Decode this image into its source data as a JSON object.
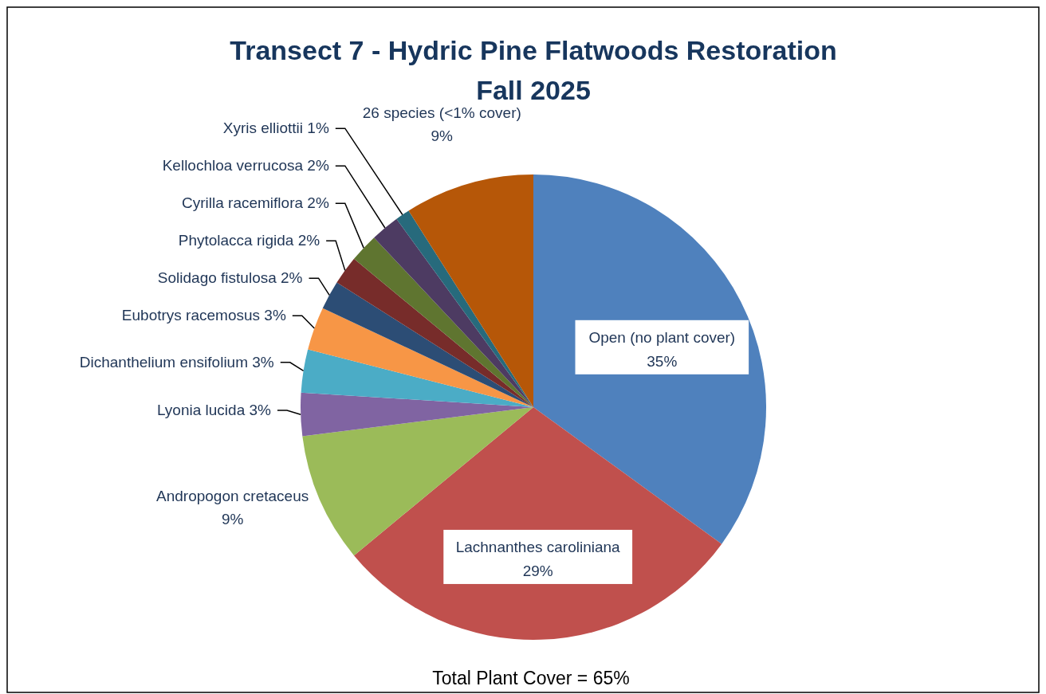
{
  "chart_data": {
    "type": "pie",
    "title": "Transect 7 - Hydric Pine Flatwoods Restoration\nFall 2025",
    "categories": [
      "Open (no plant cover)",
      "Lachnanthes caroliniana",
      "Andropogon cretaceus",
      "Lyonia lucida",
      "Dichanthelium ensifolium",
      "Eubotrys racemosus",
      "Solidago fistulosa",
      "Phytolacca rigida",
      "Cyrilla racemiflora",
      "Kellochloa verrucosa",
      "Xyris elliottii",
      "26 species (<1% cover)"
    ],
    "values": [
      35,
      29,
      9,
      3,
      3,
      3,
      2,
      2,
      2,
      2,
      1,
      9
    ],
    "value_labels": [
      "35%",
      "29%",
      "9%",
      "3%",
      "3%",
      "3%",
      "2%",
      "2%",
      "2%",
      "2%",
      "1%",
      "9%"
    ],
    "colors": [
      "#4f81bd",
      "#c0504d",
      "#9bbb59",
      "#8064a2",
      "#4bacc6",
      "#f79646",
      "#2c4d75",
      "#772c2a",
      "#5f7530",
      "#4d3b62",
      "#276a7c",
      "#b65708"
    ],
    "annotations": [
      "Total Plant Cover = 65%"
    ]
  }
}
